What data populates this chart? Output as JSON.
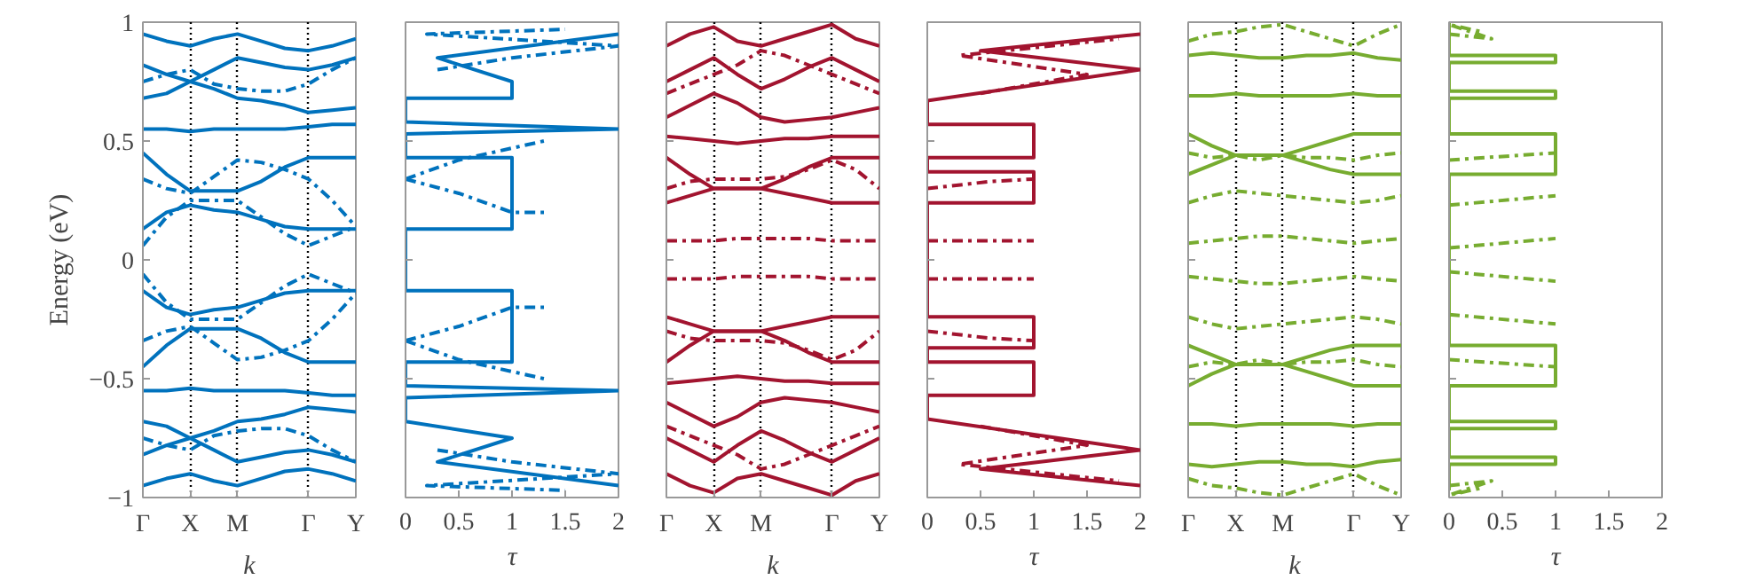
{
  "chart_data": [
    {
      "type": "line",
      "ylabel": "Energy (eV)",
      "xlabel": "k",
      "ylim": [
        -1,
        1
      ],
      "yticks": [
        -1,
        -0.5,
        0,
        0.5,
        1
      ],
      "grid": "x",
      "categories": [
        "Γ",
        null,
        "X",
        null,
        "M",
        null,
        null,
        "Γ",
        null,
        "Y"
      ],
      "series": [
        {
          "color": "#0072bd",
          "line_style": "solid",
          "values": [
            0.13,
            0.2,
            0.23,
            0.21,
            0.2,
            0.17,
            0.14,
            0.13,
            0.13,
            0.13
          ]
        },
        {
          "color": "#0072bd",
          "line_style": "solid",
          "values": [
            0.45,
            0.36,
            0.29,
            0.29,
            0.29,
            0.33,
            0.39,
            0.43,
            0.43,
            0.43
          ]
        },
        {
          "color": "#0072bd",
          "line_style": "solid",
          "values": [
            0.55,
            0.55,
            0.54,
            0.55,
            0.55,
            0.55,
            0.55,
            0.56,
            0.57,
            0.57
          ]
        },
        {
          "color": "#0072bd",
          "line_style": "solid",
          "values": [
            -0.13,
            -0.2,
            -0.23,
            -0.21,
            -0.2,
            -0.17,
            -0.14,
            -0.13,
            -0.13,
            -0.13
          ]
        },
        {
          "color": "#0072bd",
          "line_style": "solid",
          "values": [
            -0.45,
            -0.36,
            -0.29,
            -0.29,
            -0.29,
            -0.33,
            -0.39,
            -0.43,
            -0.43,
            -0.43
          ]
        },
        {
          "color": "#0072bd",
          "line_style": "solid",
          "values": [
            -0.55,
            -0.55,
            -0.54,
            -0.55,
            -0.55,
            -0.55,
            -0.55,
            -0.56,
            -0.57,
            -0.57
          ]
        },
        {
          "color": "#0072bd",
          "line_style": "dashed",
          "values": [
            0.06,
            0.18,
            0.25,
            0.25,
            0.25,
            0.18,
            0.11,
            0.06,
            0.1,
            0.14
          ]
        },
        {
          "color": "#0072bd",
          "line_style": "dashed",
          "values": [
            0.34,
            0.3,
            0.28,
            0.35,
            0.42,
            0.41,
            0.38,
            0.34,
            0.25,
            0.14
          ]
        },
        {
          "color": "#0072bd",
          "line_style": "dashed",
          "values": [
            -0.06,
            -0.18,
            -0.25,
            -0.25,
            -0.25,
            -0.18,
            -0.11,
            -0.06,
            -0.1,
            -0.14
          ]
        },
        {
          "color": "#0072bd",
          "line_style": "dashed",
          "values": [
            -0.34,
            -0.3,
            -0.28,
            -0.35,
            -0.42,
            -0.41,
            -0.38,
            -0.34,
            -0.25,
            -0.14
          ]
        },
        {
          "color": "#0072bd",
          "line_style": "solid",
          "values": [
            0.68,
            0.7,
            0.75,
            0.72,
            0.68,
            0.67,
            0.65,
            0.62,
            0.63,
            0.64
          ]
        },
        {
          "color": "#0072bd",
          "line_style": "solid",
          "values": [
            0.82,
            0.78,
            0.75,
            0.8,
            0.85,
            0.83,
            0.81,
            0.8,
            0.82,
            0.85
          ]
        },
        {
          "color": "#0072bd",
          "line_style": "dashed",
          "values": [
            0.75,
            0.78,
            0.8,
            0.74,
            0.72,
            0.71,
            0.71,
            0.74,
            0.8,
            0.85
          ]
        },
        {
          "color": "#0072bd",
          "line_style": "solid",
          "values": [
            0.95,
            0.92,
            0.9,
            0.93,
            0.95,
            0.92,
            0.89,
            0.88,
            0.9,
            0.93
          ]
        },
        {
          "color": "#0072bd",
          "line_style": "solid",
          "values": [
            -0.68,
            -0.7,
            -0.75,
            -0.72,
            -0.68,
            -0.67,
            -0.65,
            -0.62,
            -0.63,
            -0.64
          ]
        },
        {
          "color": "#0072bd",
          "line_style": "solid",
          "values": [
            -0.82,
            -0.78,
            -0.75,
            -0.8,
            -0.85,
            -0.83,
            -0.81,
            -0.8,
            -0.82,
            -0.85
          ]
        },
        {
          "color": "#0072bd",
          "line_style": "dashed",
          "values": [
            -0.75,
            -0.78,
            -0.8,
            -0.74,
            -0.72,
            -0.71,
            -0.71,
            -0.74,
            -0.8,
            -0.85
          ]
        },
        {
          "color": "#0072bd",
          "line_style": "solid",
          "values": [
            -0.95,
            -0.92,
            -0.9,
            -0.93,
            -0.95,
            -0.92,
            -0.89,
            -0.88,
            -0.9,
            -0.93
          ]
        }
      ]
    },
    {
      "type": "line",
      "xlabel": "τ",
      "xlim": [
        0,
        2
      ],
      "ylim": [
        -1,
        1
      ],
      "xticks": [
        0,
        0.5,
        1,
        1.5,
        2
      ],
      "yticks": [
        -1,
        -0.5,
        0,
        0.5,
        1
      ],
      "tick_labels": "x",
      "series": [
        {
          "color": "#0072bd",
          "line_style": "solid",
          "x": [
            2,
            0.3,
            1,
            0,
            0,
            2,
            0,
            0,
            1,
            1,
            0,
            0,
            1,
            1,
            0,
            0,
            2,
            0,
            0,
            1,
            1,
            0.3,
            2
          ],
          "values": [
            -0.95,
            -0.85,
            -0.75,
            -0.68,
            -0.58,
            -0.55,
            -0.53,
            -0.43,
            -0.43,
            -0.13,
            -0.13,
            0.13,
            0.13,
            0.43,
            0.43,
            0.53,
            0.55,
            0.58,
            0.68,
            0.68,
            0.75,
            0.85,
            0.95
          ]
        },
        {
          "color": "#0072bd",
          "line_style": "dashed",
          "x": [
            0,
            0.5,
            1,
            1.3
          ],
          "values": [
            0.34,
            0.28,
            0.2,
            0.2
          ]
        },
        {
          "color": "#0072bd",
          "line_style": "dashed",
          "x": [
            0,
            0.5,
            1,
            1.3
          ],
          "values": [
            0.34,
            0.42,
            0.47,
            0.5
          ]
        },
        {
          "color": "#0072bd",
          "line_style": "dashed",
          "x": [
            0,
            0.5,
            1,
            1.3
          ],
          "values": [
            -0.34,
            -0.28,
            -0.2,
            -0.2
          ]
        },
        {
          "color": "#0072bd",
          "line_style": "dashed",
          "x": [
            0,
            0.5,
            1,
            1.3
          ],
          "values": [
            -0.34,
            -0.42,
            -0.47,
            -0.5
          ]
        },
        {
          "color": "#0072bd",
          "line_style": "dashed",
          "x": [
            0.3,
            1,
            2,
            0.2,
            1.5
          ],
          "values": [
            0.8,
            0.85,
            0.9,
            0.95,
            0.97
          ]
        },
        {
          "color": "#0072bd",
          "line_style": "dashed",
          "x": [
            0.3,
            1,
            2,
            0.2,
            1.5
          ],
          "values": [
            -0.8,
            -0.85,
            -0.9,
            -0.95,
            -0.97
          ]
        }
      ]
    },
    {
      "type": "line",
      "xlabel": "k",
      "ylim": [
        -1,
        1
      ],
      "yticks": [
        -1,
        -0.5,
        0,
        0.5,
        1
      ],
      "tick_labels": "x",
      "grid": "x",
      "categories": [
        "Γ",
        null,
        "X",
        null,
        "M",
        null,
        null,
        "Γ",
        null,
        "Y"
      ],
      "series": [
        {
          "color": "#a2142f",
          "line_style": "dashed",
          "values": [
            0.08,
            0.08,
            0.08,
            0.09,
            0.09,
            0.09,
            0.09,
            0.08,
            0.08,
            0.08
          ]
        },
        {
          "color": "#a2142f",
          "line_style": "dashed",
          "values": [
            -0.08,
            -0.08,
            -0.08,
            -0.07,
            -0.07,
            -0.07,
            -0.07,
            -0.08,
            -0.08,
            -0.08
          ]
        },
        {
          "color": "#a2142f",
          "line_style": "solid",
          "values": [
            0.43,
            0.36,
            0.3,
            0.3,
            0.3,
            0.34,
            0.39,
            0.43,
            0.43,
            0.43
          ]
        },
        {
          "color": "#a2142f",
          "line_style": "solid",
          "values": [
            0.24,
            0.27,
            0.3,
            0.3,
            0.3,
            0.28,
            0.26,
            0.24,
            0.24,
            0.24
          ]
        },
        {
          "color": "#a2142f",
          "line_style": "dashed",
          "values": [
            0.3,
            0.33,
            0.34,
            0.34,
            0.34,
            0.35,
            0.38,
            0.42,
            0.38,
            0.3
          ]
        },
        {
          "color": "#a2142f",
          "line_style": "solid",
          "values": [
            0.52,
            0.51,
            0.5,
            0.49,
            0.5,
            0.51,
            0.51,
            0.52,
            0.52,
            0.52
          ]
        },
        {
          "color": "#a2142f",
          "line_style": "solid",
          "values": [
            -0.43,
            -0.36,
            -0.3,
            -0.3,
            -0.3,
            -0.34,
            -0.39,
            -0.43,
            -0.43,
            -0.43
          ]
        },
        {
          "color": "#a2142f",
          "line_style": "solid",
          "values": [
            -0.24,
            -0.27,
            -0.3,
            -0.3,
            -0.3,
            -0.28,
            -0.26,
            -0.24,
            -0.24,
            -0.24
          ]
        },
        {
          "color": "#a2142f",
          "line_style": "dashed",
          "values": [
            -0.3,
            -0.33,
            -0.34,
            -0.34,
            -0.34,
            -0.35,
            -0.38,
            -0.42,
            -0.38,
            -0.3
          ]
        },
        {
          "color": "#a2142f",
          "line_style": "solid",
          "values": [
            -0.52,
            -0.51,
            -0.5,
            -0.49,
            -0.5,
            -0.51,
            -0.51,
            -0.52,
            -0.52,
            -0.52
          ]
        },
        {
          "color": "#a2142f",
          "line_style": "solid",
          "values": [
            0.6,
            0.65,
            0.7,
            0.66,
            0.6,
            0.58,
            0.59,
            0.6,
            0.62,
            0.64
          ]
        },
        {
          "color": "#a2142f",
          "line_style": "solid",
          "values": [
            0.75,
            0.8,
            0.85,
            0.78,
            0.72,
            0.76,
            0.81,
            0.85,
            0.8,
            0.75
          ]
        },
        {
          "color": "#a2142f",
          "line_style": "dashed",
          "values": [
            0.7,
            0.74,
            0.78,
            0.82,
            0.88,
            0.86,
            0.82,
            0.78,
            0.74,
            0.7
          ]
        },
        {
          "color": "#a2142f",
          "line_style": "solid",
          "values": [
            0.9,
            0.95,
            0.98,
            0.92,
            0.9,
            0.93,
            0.96,
            0.99,
            0.93,
            0.9
          ]
        },
        {
          "color": "#a2142f",
          "line_style": "solid",
          "values": [
            -0.6,
            -0.65,
            -0.7,
            -0.66,
            -0.6,
            -0.58,
            -0.59,
            -0.6,
            -0.62,
            -0.64
          ]
        },
        {
          "color": "#a2142f",
          "line_style": "solid",
          "values": [
            -0.75,
            -0.8,
            -0.85,
            -0.78,
            -0.72,
            -0.76,
            -0.81,
            -0.85,
            -0.8,
            -0.75
          ]
        },
        {
          "color": "#a2142f",
          "line_style": "dashed",
          "values": [
            -0.7,
            -0.74,
            -0.78,
            -0.82,
            -0.88,
            -0.86,
            -0.82,
            -0.78,
            -0.74,
            -0.7
          ]
        },
        {
          "color": "#a2142f",
          "line_style": "solid",
          "values": [
            -0.9,
            -0.95,
            -0.98,
            -0.92,
            -0.9,
            -0.93,
            -0.96,
            -0.99,
            -0.93,
            -0.9
          ]
        }
      ]
    },
    {
      "type": "line",
      "xlabel": "τ",
      "xlim": [
        0,
        2
      ],
      "ylim": [
        -1,
        1
      ],
      "xticks": [
        0,
        0.5,
        1,
        1.5,
        2
      ],
      "yticks": [
        -1,
        -0.5,
        0,
        0.5,
        1
      ],
      "tick_labels": "x",
      "series": [
        {
          "color": "#a2142f",
          "line_style": "solid",
          "x": [
            2,
            0.5,
            2,
            0,
            0,
            1,
            1,
            0,
            0,
            1,
            1,
            0,
            0,
            1,
            1,
            0,
            0,
            1,
            1,
            0,
            0,
            2,
            0.5,
            2
          ],
          "values": [
            -0.95,
            -0.88,
            -0.8,
            -0.67,
            -0.57,
            -0.57,
            -0.43,
            -0.43,
            -0.37,
            -0.37,
            -0.24,
            -0.24,
            0.24,
            0.24,
            0.37,
            0.37,
            0.43,
            0.43,
            0.57,
            0.57,
            0.67,
            0.8,
            0.88,
            0.95
          ]
        },
        {
          "color": "#a2142f",
          "line_style": "dashed",
          "x": [
            0,
            1
          ],
          "values": [
            0.08,
            0.08
          ]
        },
        {
          "color": "#a2142f",
          "line_style": "dashed",
          "x": [
            0,
            1
          ],
          "values": [
            -0.08,
            -0.08
          ]
        },
        {
          "color": "#a2142f",
          "line_style": "dashed",
          "x": [
            0,
            0.6,
            1
          ],
          "values": [
            0.3,
            0.33,
            0.34
          ]
        },
        {
          "color": "#a2142f",
          "line_style": "dashed",
          "x": [
            0,
            0.6,
            1
          ],
          "values": [
            -0.3,
            -0.33,
            -0.34
          ]
        },
        {
          "color": "#a2142f",
          "line_style": "dashed",
          "x": [
            0.5,
            1.5,
            0.3,
            1.8
          ],
          "values": [
            0.7,
            0.78,
            0.86,
            0.93
          ]
        },
        {
          "color": "#a2142f",
          "line_style": "dashed",
          "x": [
            0.5,
            1.5,
            0.3,
            1.8
          ],
          "values": [
            -0.7,
            -0.78,
            -0.86,
            -0.93
          ]
        }
      ]
    },
    {
      "type": "line",
      "xlabel": "k",
      "ylim": [
        -1,
        1
      ],
      "yticks": [
        -1,
        -0.5,
        0,
        0.5,
        1
      ],
      "tick_labels": "x",
      "grid": "x",
      "categories": [
        "Γ",
        null,
        "X",
        null,
        "M",
        null,
        null,
        "Γ",
        null,
        "Y"
      ],
      "series": [
        {
          "color": "#77ac30",
          "line_style": "solid",
          "values": [
            0.53,
            0.48,
            0.44,
            0.44,
            0.44,
            0.47,
            0.5,
            0.53,
            0.53,
            0.53
          ]
        },
        {
          "color": "#77ac30",
          "line_style": "solid",
          "values": [
            0.36,
            0.4,
            0.44,
            0.44,
            0.44,
            0.41,
            0.38,
            0.36,
            0.36,
            0.36
          ]
        },
        {
          "color": "#77ac30",
          "line_style": "solid",
          "values": [
            0.86,
            0.87,
            0.86,
            0.85,
            0.85,
            0.86,
            0.86,
            0.87,
            0.85,
            0.84
          ]
        },
        {
          "color": "#77ac30",
          "line_style": "solid",
          "values": [
            0.69,
            0.69,
            0.7,
            0.69,
            0.69,
            0.69,
            0.69,
            0.7,
            0.69,
            0.69
          ]
        },
        {
          "color": "#77ac30",
          "line_style": "dashed",
          "values": [
            0.07,
            0.08,
            0.09,
            0.1,
            0.1,
            0.09,
            0.08,
            0.07,
            0.08,
            0.09
          ]
        },
        {
          "color": "#77ac30",
          "line_style": "dashed",
          "values": [
            0.24,
            0.27,
            0.29,
            0.28,
            0.27,
            0.26,
            0.25,
            0.24,
            0.25,
            0.27
          ]
        },
        {
          "color": "#77ac30",
          "line_style": "dashed",
          "values": [
            0.45,
            0.43,
            0.44,
            0.42,
            0.44,
            0.43,
            0.43,
            0.42,
            0.44,
            0.45
          ]
        },
        {
          "color": "#77ac30",
          "line_style": "dashed",
          "values": [
            0.92,
            0.95,
            0.96,
            0.98,
            0.99,
            0.96,
            0.93,
            0.9,
            0.95,
            0.99
          ]
        },
        {
          "color": "#77ac30",
          "line_style": "solid",
          "values": [
            -0.53,
            -0.48,
            -0.44,
            -0.44,
            -0.44,
            -0.47,
            -0.5,
            -0.53,
            -0.53,
            -0.53
          ]
        },
        {
          "color": "#77ac30",
          "line_style": "solid",
          "values": [
            -0.36,
            -0.4,
            -0.44,
            -0.44,
            -0.44,
            -0.41,
            -0.38,
            -0.36,
            -0.36,
            -0.36
          ]
        },
        {
          "color": "#77ac30",
          "line_style": "solid",
          "values": [
            -0.86,
            -0.87,
            -0.86,
            -0.85,
            -0.85,
            -0.86,
            -0.86,
            -0.87,
            -0.85,
            -0.84
          ]
        },
        {
          "color": "#77ac30",
          "line_style": "solid",
          "values": [
            -0.69,
            -0.69,
            -0.7,
            -0.69,
            -0.69,
            -0.69,
            -0.69,
            -0.7,
            -0.69,
            -0.69
          ]
        },
        {
          "color": "#77ac30",
          "line_style": "dashed",
          "values": [
            -0.07,
            -0.08,
            -0.09,
            -0.1,
            -0.1,
            -0.09,
            -0.08,
            -0.07,
            -0.08,
            -0.09
          ]
        },
        {
          "color": "#77ac30",
          "line_style": "dashed",
          "values": [
            -0.24,
            -0.27,
            -0.29,
            -0.28,
            -0.27,
            -0.26,
            -0.25,
            -0.24,
            -0.25,
            -0.27
          ]
        },
        {
          "color": "#77ac30",
          "line_style": "dashed",
          "values": [
            -0.45,
            -0.43,
            -0.44,
            -0.42,
            -0.44,
            -0.43,
            -0.43,
            -0.42,
            -0.44,
            -0.45
          ]
        },
        {
          "color": "#77ac30",
          "line_style": "dashed",
          "values": [
            -0.92,
            -0.95,
            -0.96,
            -0.98,
            -0.99,
            -0.96,
            -0.93,
            -0.9,
            -0.95,
            -0.99
          ]
        }
      ]
    },
    {
      "type": "line",
      "xlabel": "τ",
      "xlim": [
        0,
        2
      ],
      "ylim": [
        -1,
        1
      ],
      "xticks": [
        0,
        0.5,
        1,
        1.5,
        2
      ],
      "yticks": [
        -1,
        -0.5,
        0,
        0.5,
        1
      ],
      "tick_labels": "x",
      "series": [
        {
          "color": "#77ac30",
          "line_style": "solid",
          "x": [
            0,
            0,
            1,
            1,
            0,
            0,
            1,
            1,
            0,
            0,
            1,
            1,
            0,
            0,
            1,
            1,
            0,
            0,
            1,
            1,
            0,
            0,
            1,
            1,
            0,
            0
          ],
          "values": [
            -0.97,
            -0.86,
            -0.86,
            -0.83,
            -0.83,
            -0.71,
            -0.71,
            -0.68,
            -0.68,
            -0.53,
            -0.53,
            -0.36,
            -0.36,
            0.36,
            0.36,
            0.53,
            0.53,
            0.68,
            0.68,
            0.71,
            0.71,
            0.83,
            0.83,
            0.86,
            0.86,
            1
          ]
        },
        {
          "color": "#77ac30",
          "line_style": "dashed",
          "x": [
            0,
            1
          ],
          "values": [
            0.05,
            0.09
          ]
        },
        {
          "color": "#77ac30",
          "line_style": "dashed",
          "x": [
            0,
            1
          ],
          "values": [
            0.23,
            0.27
          ]
        },
        {
          "color": "#77ac30",
          "line_style": "dashed",
          "x": [
            0,
            1
          ],
          "values": [
            0.42,
            0.45
          ]
        },
        {
          "color": "#77ac30",
          "line_style": "dashed",
          "x": [
            0,
            0.4,
            0,
            0.3
          ],
          "values": [
            0.95,
            0.93,
            0.99,
            0.96
          ]
        },
        {
          "color": "#77ac30",
          "line_style": "dashed",
          "x": [
            0,
            1
          ],
          "values": [
            -0.05,
            -0.09
          ]
        },
        {
          "color": "#77ac30",
          "line_style": "dashed",
          "x": [
            0,
            1
          ],
          "values": [
            -0.23,
            -0.27
          ]
        },
        {
          "color": "#77ac30",
          "line_style": "dashed",
          "x": [
            0,
            1
          ],
          "values": [
            -0.42,
            -0.45
          ]
        },
        {
          "color": "#77ac30",
          "line_style": "dashed",
          "x": [
            0,
            0.4,
            0,
            0.3
          ],
          "values": [
            -0.95,
            -0.93,
            -0.99,
            -0.96
          ]
        }
      ]
    }
  ]
}
